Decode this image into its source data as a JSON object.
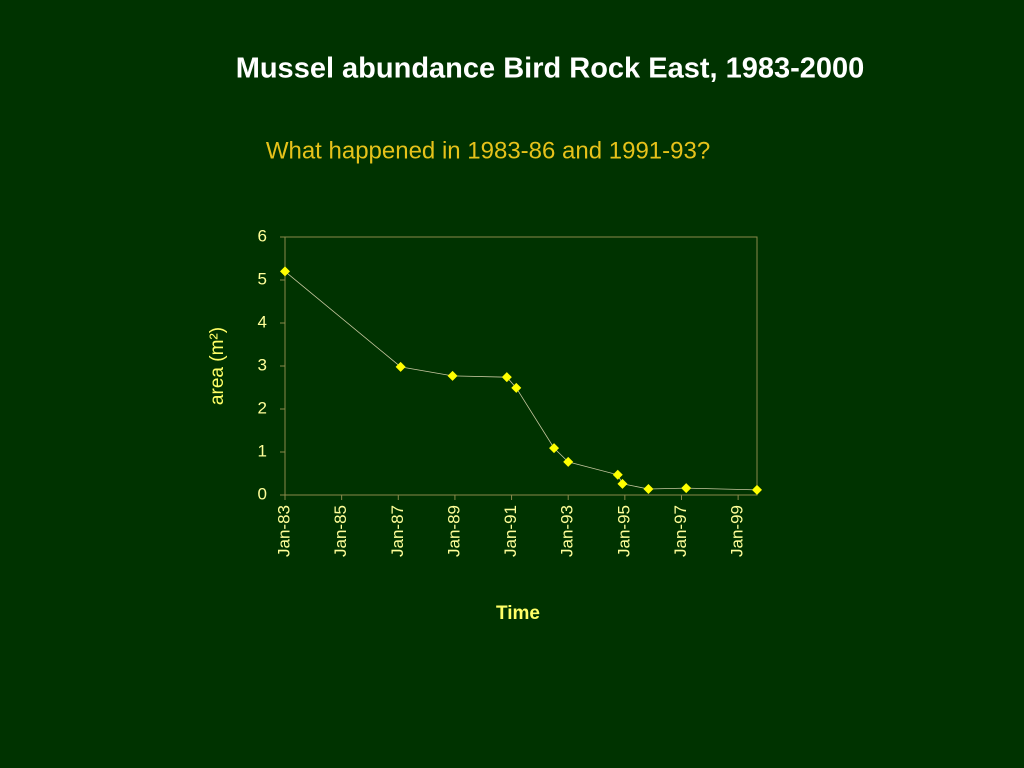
{
  "chart_data": {
    "type": "line",
    "title": "Mussel abundance Bird Rock East, 1983-2000",
    "subtitle": "What happened in 1983-86 and 1991-93?",
    "xlabel": "Time",
    "ylabel": "area (m²)",
    "x": [
      "Jan-83",
      "Feb-87",
      "Dec-88",
      "Nov-90",
      "Mar-91",
      "Jul-92",
      "Jan-93",
      "Oct-94",
      "Dec-94",
      "Nov-95",
      "Mar-97",
      "Sep-99"
    ],
    "series": [
      {
        "color": "#ffff00",
        "values": [
          5.2,
          2.98,
          2.77,
          2.74,
          2.49,
          1.09,
          0.77,
          0.47,
          0.26,
          0.14,
          0.16,
          0.12
        ]
      }
    ],
    "xlim": [
      "Jan-83",
      "Sep-99"
    ],
    "xticks": [
      "Jan-83",
      "Jan-85",
      "Jan-87",
      "Jan-89",
      "Jan-91",
      "Jan-93",
      "Jan-95",
      "Jan-97",
      "Jan-99"
    ],
    "ylim": [
      0,
      6
    ],
    "yticks": [
      0,
      1,
      2,
      3,
      4,
      5,
      6
    ],
    "grid": false
  }
}
